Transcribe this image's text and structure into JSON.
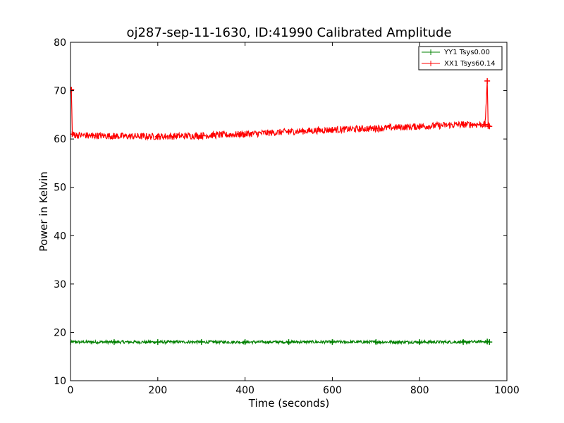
{
  "chart_data": {
    "type": "line",
    "title": "oj287-sep-11-1630, ID:41990 Calibrated Amplitude",
    "xlabel": "Time (seconds)",
    "ylabel": "Power in Kelvin",
    "xlim": [
      0,
      1000
    ],
    "ylim": [
      10,
      80
    ],
    "xticks": [
      0,
      200,
      400,
      600,
      800,
      1000
    ],
    "yticks": [
      10,
      20,
      30,
      40,
      50,
      60,
      70,
      80
    ],
    "grid": false,
    "legend_position": "top-right",
    "series": [
      {
        "name": "YY1 Tsys0.00",
        "color": "#008000",
        "marker": "+",
        "x": [
          0,
          100,
          200,
          300,
          400,
          500,
          600,
          700,
          800,
          900,
          955,
          960
        ],
        "y": [
          18.0,
          18.0,
          18.0,
          18.0,
          18.0,
          18.0,
          18.0,
          18.0,
          18.0,
          18.0,
          18.1,
          18.0
        ],
        "noise": 0.3
      },
      {
        "name": "XX1 Tsys60.14",
        "color": "#ff0000",
        "marker": "+",
        "x": [
          0,
          2,
          4,
          10,
          50,
          100,
          200,
          300,
          400,
          500,
          600,
          700,
          800,
          900,
          950,
          955,
          957,
          960
        ],
        "y": [
          70.0,
          70.2,
          61.0,
          60.8,
          60.7,
          60.6,
          60.5,
          60.7,
          61.0,
          61.5,
          61.9,
          62.2,
          62.6,
          63.0,
          63.0,
          72.0,
          62.7,
          62.6
        ],
        "noise": 0.7
      }
    ]
  }
}
